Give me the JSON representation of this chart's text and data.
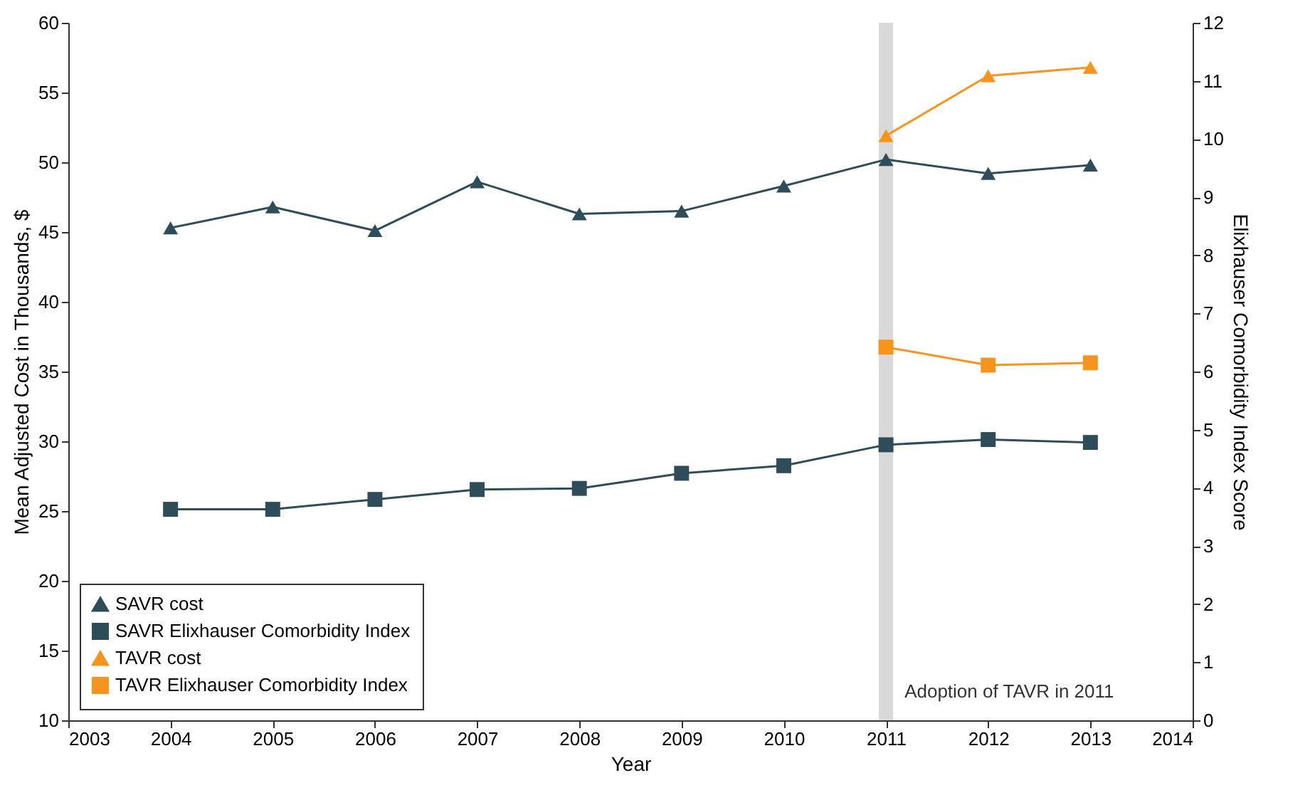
{
  "chart_data": {
    "type": "line",
    "xlabel": "Year",
    "ylabel": "Mean Adjusted Cost in Thousands, $",
    "y2label": "Elixhauser Comorbidity Index Score",
    "xlim": [
      2003,
      2014
    ],
    "xticks": [
      2003,
      2004,
      2005,
      2006,
      2007,
      2008,
      2009,
      2010,
      2011,
      2012,
      2013,
      2014
    ],
    "ylim": [
      10,
      60
    ],
    "yticks": [
      10,
      15,
      20,
      25,
      30,
      35,
      40,
      45,
      50,
      55,
      60
    ],
    "y2lim": [
      0,
      12
    ],
    "y2ticks": [
      0,
      1,
      2,
      3,
      4,
      5,
      6,
      7,
      8,
      9,
      10,
      11,
      12
    ],
    "grid": false,
    "legend": "bottom left",
    "bands": [
      {
        "axis": "x",
        "from": 2010.93,
        "to": 2011.07,
        "label": "Adoption of TAVR in 2011",
        "color": "#d9d9d9"
      }
    ],
    "series": [
      {
        "name": "SAVR cost",
        "color": "#2e4d58",
        "marker": "triangle",
        "x": [
          2004,
          2005,
          2006,
          2007,
          2008,
          2009,
          2010,
          2011,
          2012,
          2013
        ],
        "values": [
          45.3,
          46.8,
          45.1,
          48.6,
          46.3,
          46.5,
          48.3,
          50.2,
          49.2,
          49.8
        ]
      },
      {
        "name": "SAVR Elixhauser Comorbidity Index",
        "color": "#2e4d58",
        "marker": "square",
        "axis": "y2",
        "x": [
          2004,
          2005,
          2006,
          2007,
          2008,
          2009,
          2010,
          2011,
          2012,
          2013
        ],
        "values": [
          3.63,
          3.63,
          3.8,
          3.97,
          3.99,
          4.25,
          4.38,
          4.74,
          4.83,
          4.78
        ]
      },
      {
        "name": "TAVR cost",
        "color": "#f7941d",
        "marker": "triangle",
        "x": [
          2011,
          2012,
          2013
        ],
        "values": [
          51.9,
          56.2,
          56.8
        ]
      },
      {
        "name": "TAVR Elixhauser Comorbidity Index",
        "color": "#f7941d",
        "marker": "square",
        "axis": "y2",
        "x": [
          2011,
          2012,
          2013
        ],
        "values": [
          6.42,
          6.11,
          6.15
        ]
      }
    ]
  }
}
